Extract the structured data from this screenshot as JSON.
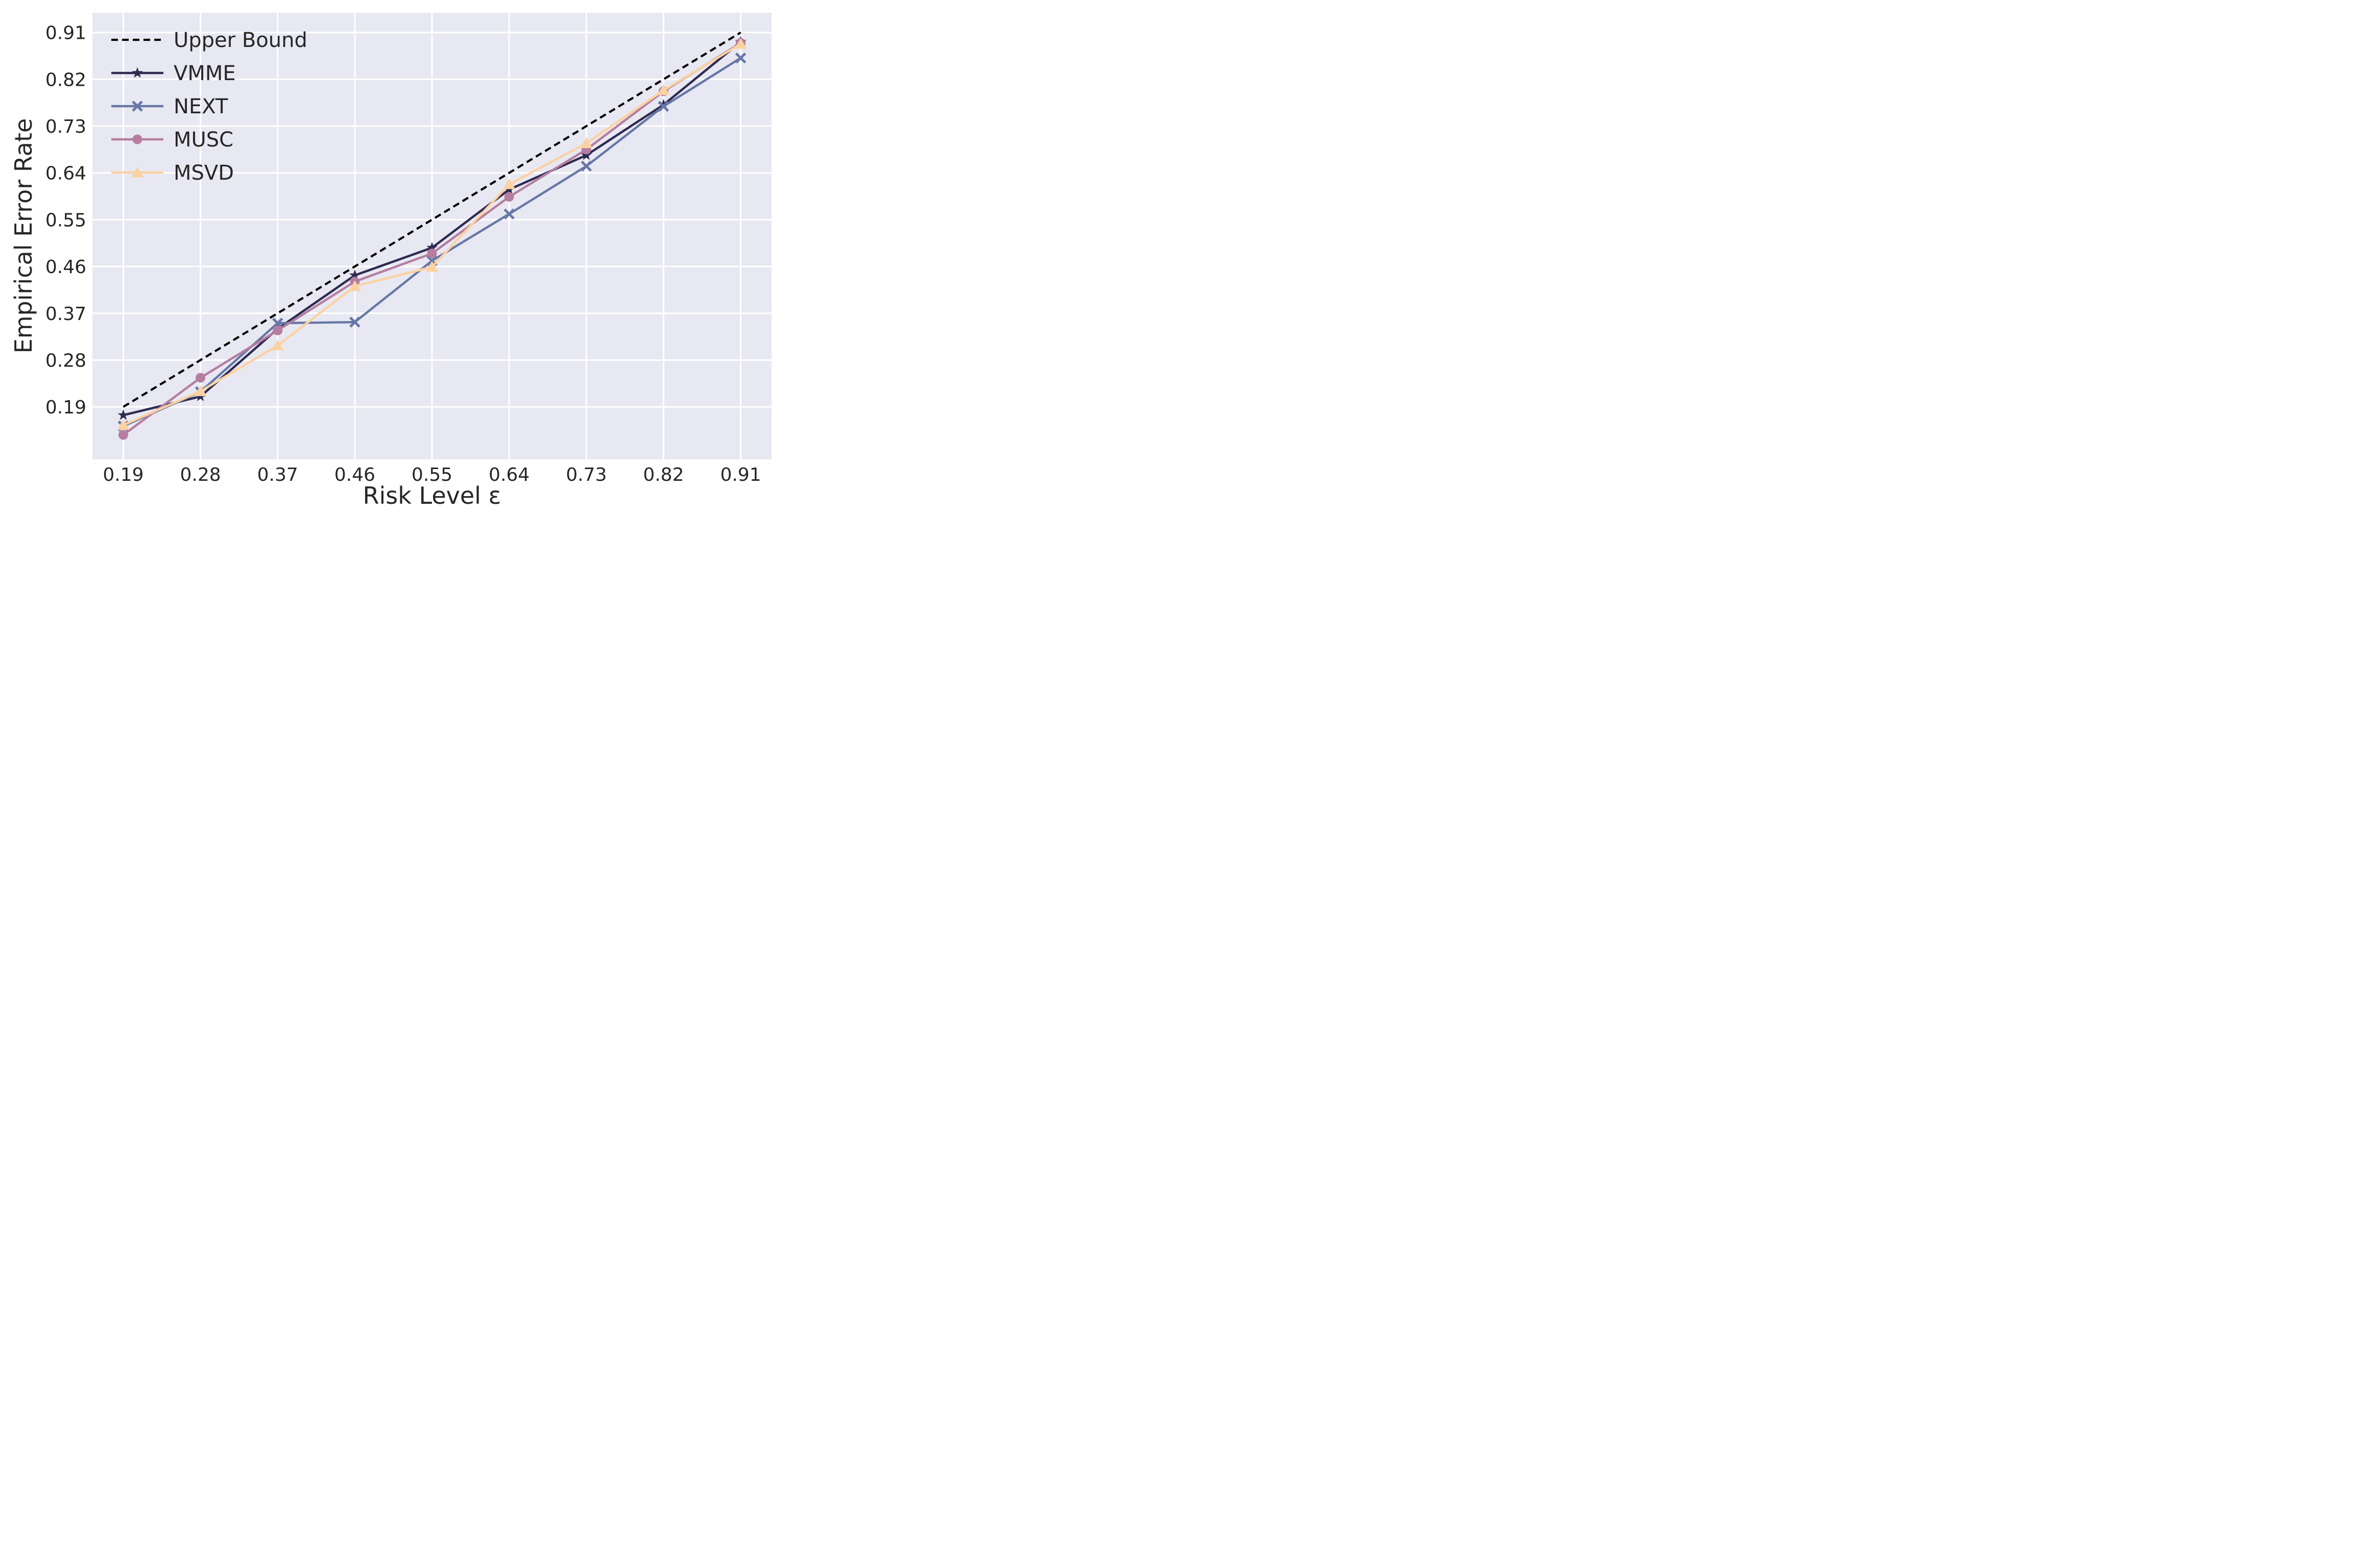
{
  "figure": {
    "background": "#ffffff",
    "plot_background": "#e8e8f2",
    "grid_color": "#ffffff",
    "text_color": "#262626"
  },
  "chart_data": {
    "type": "line",
    "title": "",
    "xlabel": "Risk Level ε",
    "ylabel": "Empirical Error Rate",
    "x": [
      0.19,
      0.28,
      0.37,
      0.46,
      0.55,
      0.64,
      0.73,
      0.82,
      0.91
    ],
    "xtick_labels": [
      "0.19",
      "0.28",
      "0.37",
      "0.46",
      "0.55",
      "0.64",
      "0.73",
      "0.82",
      "0.91"
    ],
    "ytick_labels": [
      "0.19",
      "0.28",
      "0.37",
      "0.46",
      "0.55",
      "0.64",
      "0.73",
      "0.82",
      "0.91"
    ],
    "xlim": [
      0.154,
      0.946
    ],
    "ylim": [
      0.089,
      0.948
    ],
    "grid": true,
    "legend_position": "upper left",
    "series": [
      {
        "name": "Upper Bound",
        "color": "#000000",
        "line_style": "dashed",
        "marker": "none",
        "values": [
          0.19,
          0.28,
          0.37,
          0.46,
          0.55,
          0.64,
          0.73,
          0.82,
          0.91
        ]
      },
      {
        "name": "VMME",
        "color": "#302b52",
        "line_style": "solid",
        "marker": "star",
        "values": [
          0.174,
          0.21,
          0.34,
          0.443,
          0.496,
          0.608,
          0.674,
          0.771,
          0.892
        ]
      },
      {
        "name": "NEXT",
        "color": "#6777a7",
        "line_style": "solid",
        "marker": "x",
        "values": [
          0.153,
          0.219,
          0.351,
          0.353,
          0.471,
          0.561,
          0.653,
          0.768,
          0.861
        ]
      },
      {
        "name": "MUSC",
        "color": "#b57ea1",
        "line_style": "solid",
        "marker": "circle",
        "values": [
          0.136,
          0.246,
          0.337,
          0.431,
          0.485,
          0.594,
          0.685,
          0.797,
          0.89
        ]
      },
      {
        "name": "MSVD",
        "color": "#fbd2a2",
        "line_style": "solid",
        "marker": "triangle",
        "values": [
          0.155,
          0.22,
          0.308,
          0.422,
          0.459,
          0.618,
          0.697,
          0.799,
          0.888
        ]
      }
    ]
  }
}
